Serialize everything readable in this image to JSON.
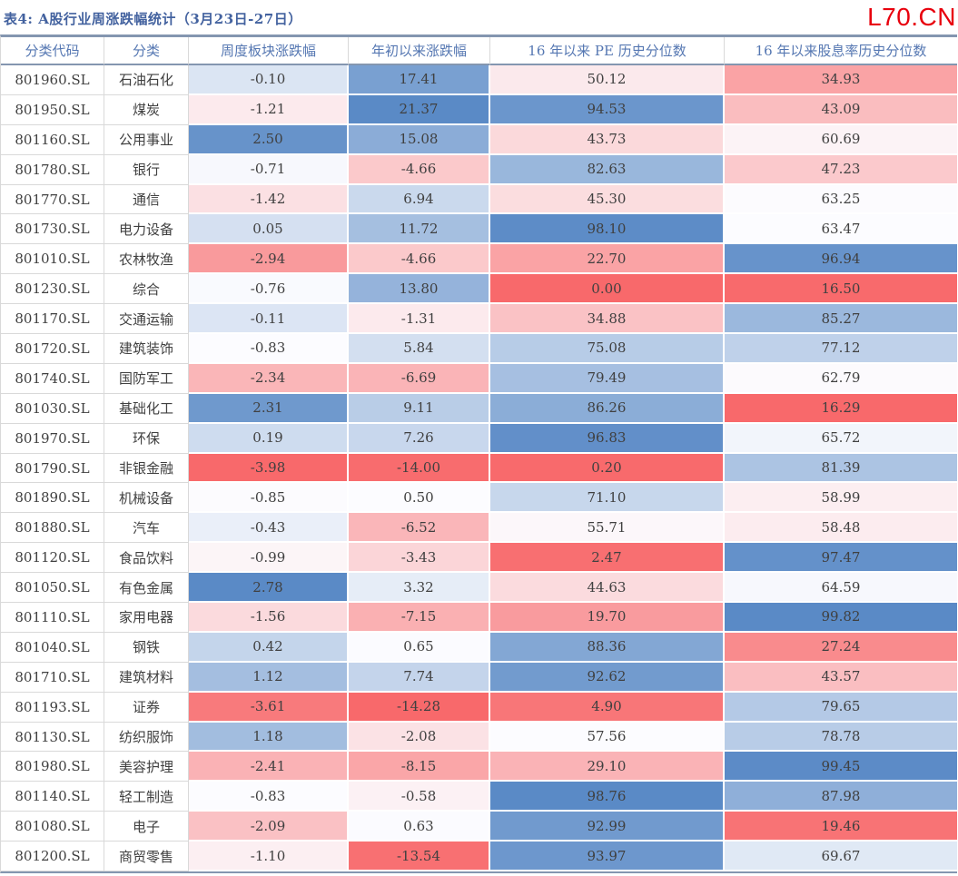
{
  "header": {
    "title": "表4: A股行业周涨跌幅统计（3月23日-27日）",
    "logo": "L70.CN"
  },
  "table": {
    "columns": [
      "分类代码",
      "分类",
      "周度板块涨跌幅",
      "年初以来涨跌幅",
      "16 年以来 PE 历史分位数",
      "16 年以来股息率历史分位数"
    ],
    "rows": [
      {
        "code": "801960.SL",
        "name": "石油石化",
        "weekly": -0.1,
        "ytd": 17.41,
        "pe": 50.12,
        "div": 34.93
      },
      {
        "code": "801950.SL",
        "name": "煤炭",
        "weekly": -1.21,
        "ytd": 21.37,
        "pe": 94.53,
        "div": 43.09
      },
      {
        "code": "801160.SL",
        "name": "公用事业",
        "weekly": 2.5,
        "ytd": 15.08,
        "pe": 43.73,
        "div": 60.69
      },
      {
        "code": "801780.SL",
        "name": "银行",
        "weekly": -0.71,
        "ytd": -4.66,
        "pe": 82.63,
        "div": 47.23
      },
      {
        "code": "801770.SL",
        "name": "通信",
        "weekly": -1.42,
        "ytd": 6.94,
        "pe": 45.3,
        "div": 63.25
      },
      {
        "code": "801730.SL",
        "name": "电力设备",
        "weekly": 0.05,
        "ytd": 11.72,
        "pe": 98.1,
        "div": 63.47
      },
      {
        "code": "801010.SL",
        "name": "农林牧渔",
        "weekly": -2.94,
        "ytd": -4.66,
        "pe": 22.7,
        "div": 96.94
      },
      {
        "code": "801230.SL",
        "name": "综合",
        "weekly": -0.76,
        "ytd": 13.8,
        "pe": 0.0,
        "div": 16.5
      },
      {
        "code": "801170.SL",
        "name": "交通运输",
        "weekly": -0.11,
        "ytd": -1.31,
        "pe": 34.88,
        "div": 85.27
      },
      {
        "code": "801720.SL",
        "name": "建筑装饰",
        "weekly": -0.83,
        "ytd": 5.84,
        "pe": 75.08,
        "div": 77.12
      },
      {
        "code": "801740.SL",
        "name": "国防军工",
        "weekly": -2.34,
        "ytd": -6.69,
        "pe": 79.49,
        "div": 62.79
      },
      {
        "code": "801030.SL",
        "name": "基础化工",
        "weekly": 2.31,
        "ytd": 9.11,
        "pe": 86.26,
        "div": 16.29
      },
      {
        "code": "801970.SL",
        "name": "环保",
        "weekly": 0.19,
        "ytd": 7.26,
        "pe": 96.83,
        "div": 65.72
      },
      {
        "code": "801790.SL",
        "name": "非银金融",
        "weekly": -3.98,
        "ytd": -14.0,
        "pe": 0.2,
        "div": 81.39
      },
      {
        "code": "801890.SL",
        "name": "机械设备",
        "weekly": -0.85,
        "ytd": 0.5,
        "pe": 71.1,
        "div": 58.99
      },
      {
        "code": "801880.SL",
        "name": "汽车",
        "weekly": -0.43,
        "ytd": -6.52,
        "pe": 55.71,
        "div": 58.48
      },
      {
        "code": "801120.SL",
        "name": "食品饮料",
        "weekly": -0.99,
        "ytd": -3.43,
        "pe": 2.47,
        "div": 97.47
      },
      {
        "code": "801050.SL",
        "name": "有色金属",
        "weekly": 2.78,
        "ytd": 3.32,
        "pe": 44.63,
        "div": 64.59
      },
      {
        "code": "801110.SL",
        "name": "家用电器",
        "weekly": -1.56,
        "ytd": -7.15,
        "pe": 19.7,
        "div": 99.82
      },
      {
        "code": "801040.SL",
        "name": "钢铁",
        "weekly": 0.42,
        "ytd": 0.65,
        "pe": 88.36,
        "div": 27.24
      },
      {
        "code": "801710.SL",
        "name": "建筑材料",
        "weekly": 1.12,
        "ytd": 7.74,
        "pe": 92.62,
        "div": 43.57
      },
      {
        "code": "801193.SL",
        "name": "证券",
        "weekly": -3.61,
        "ytd": -14.28,
        "pe": 4.9,
        "div": 79.65
      },
      {
        "code": "801130.SL",
        "name": "纺织服饰",
        "weekly": 1.18,
        "ytd": -2.08,
        "pe": 57.56,
        "div": 78.78
      },
      {
        "code": "801980.SL",
        "name": "美容护理",
        "weekly": -2.41,
        "ytd": -8.15,
        "pe": 29.1,
        "div": 99.45
      },
      {
        "code": "801140.SL",
        "name": "轻工制造",
        "weekly": -0.83,
        "ytd": -0.58,
        "pe": 98.76,
        "div": 87.98
      },
      {
        "code": "801080.SL",
        "name": "电子",
        "weekly": -2.09,
        "ytd": 0.63,
        "pe": 92.99,
        "div": 19.46
      },
      {
        "code": "801200.SL",
        "name": "商贸零售",
        "weekly": -1.1,
        "ytd": -13.54,
        "pe": 93.97,
        "div": 69.67
      }
    ]
  },
  "colors": {
    "title": "#43629F",
    "logo": "#E8000D",
    "header_text": "#5577B2",
    "cell_text": "#404040",
    "strong_border": "#8496B0",
    "light_border": "#D9D9D9",
    "scale": {
      "min": "#F8696B",
      "mid": "#FCFCFF",
      "max": "#5A8AC6"
    }
  }
}
